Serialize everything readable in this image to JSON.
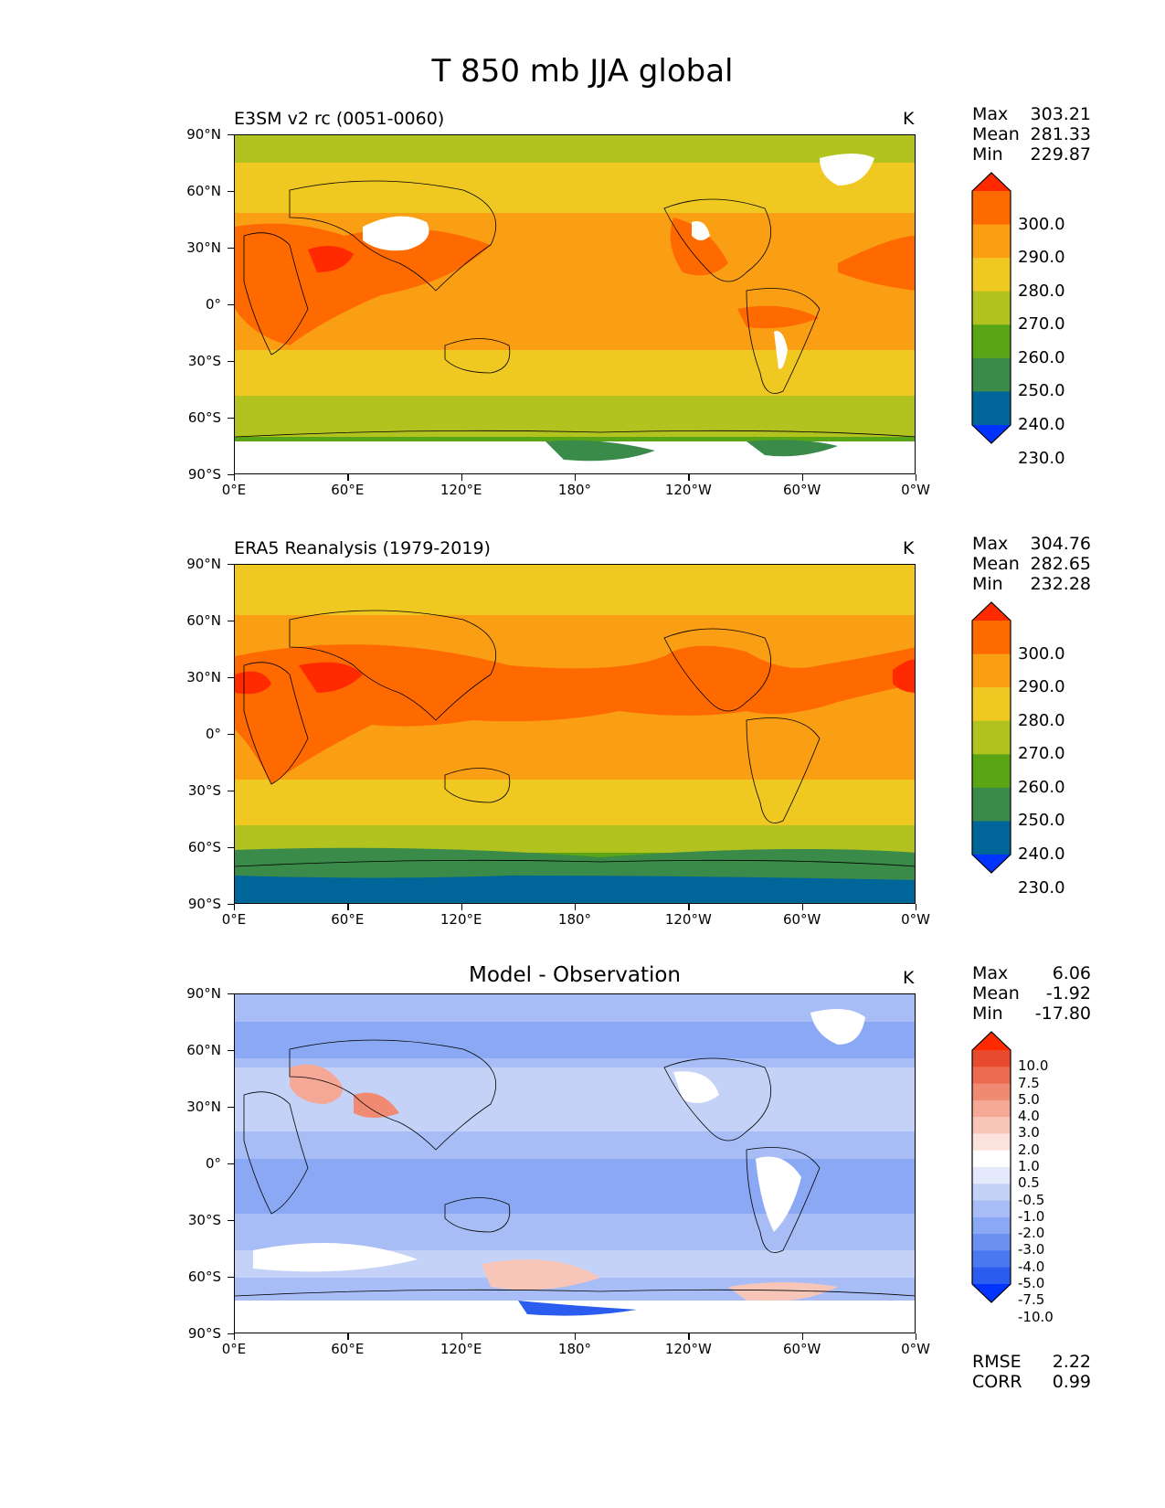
{
  "figure": {
    "title": "T 850 mb JJA global"
  },
  "axes": {
    "y_ticks": [
      "90°N",
      "60°N",
      "30°N",
      "0°",
      "30°S",
      "60°S",
      "90°S"
    ],
    "x_ticks": [
      "0°E",
      "60°E",
      "120°E",
      "180°",
      "120°W",
      "60°W",
      "0°W"
    ]
  },
  "panels": [
    {
      "name": "E3SM v2 rc (0051-0060)",
      "units": "K",
      "stats": [
        {
          "label": "Max",
          "value": "303.21"
        },
        {
          "label": "Mean",
          "value": "281.33"
        },
        {
          "label": "Min",
          "value": "229.87"
        }
      ],
      "colorbar_labels": [
        "300.0",
        "290.0",
        "280.0",
        "270.0",
        "260.0",
        "250.0",
        "240.0",
        "230.0"
      ]
    },
    {
      "name": "ERA5 Reanalysis (1979-2019)",
      "units": "K",
      "stats": [
        {
          "label": "Max",
          "value": "304.76"
        },
        {
          "label": "Mean",
          "value": "282.65"
        },
        {
          "label": "Min",
          "value": "232.28"
        }
      ],
      "colorbar_labels": [
        "300.0",
        "290.0",
        "280.0",
        "270.0",
        "260.0",
        "250.0",
        "240.0",
        "230.0"
      ]
    },
    {
      "name": "Model - Observation",
      "units": "K",
      "stats": [
        {
          "label": "Max",
          "value": "6.06"
        },
        {
          "label": "Mean",
          "value": "-1.92"
        },
        {
          "label": "Min",
          "value": "-17.80"
        }
      ],
      "colorbar_labels": [
        "10.0",
        "7.5",
        "5.0",
        "4.0",
        "3.0",
        "2.0",
        "1.0",
        "0.5",
        "-0.5",
        "-1.0",
        "-2.0",
        "-3.0",
        "-4.0",
        "-5.0",
        "-7.5",
        "-10.0"
      ],
      "bottom_stats": [
        {
          "label": "RMSE",
          "value": "2.22"
        },
        {
          "label": "CORR",
          "value": "0.99"
        }
      ]
    }
  ],
  "colors": {
    "temp_scale": [
      "#0033ff",
      "#006699",
      "#3a8a4a",
      "#5aa515",
      "#b2c21f",
      "#f0c822",
      "#fa9e14",
      "#ff6a00",
      "#ff2a00"
    ],
    "diff_scale": [
      "#0033ff",
      "#2b5cf0",
      "#4a78f0",
      "#6a90f2",
      "#8aa8f4",
      "#a8bdf6",
      "#c5d2f8",
      "#e4e9fb",
      "#ffffff",
      "#fbe2dc",
      "#f8c6b9",
      "#f4a895",
      "#f08a72",
      "#ec6b50",
      "#e84a2e",
      "#ff2a00"
    ],
    "land_outline": "#000000"
  }
}
